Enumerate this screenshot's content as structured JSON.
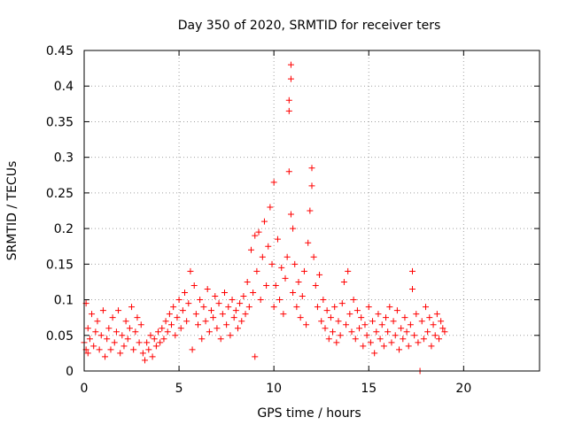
{
  "chart_data": {
    "type": "scatter",
    "title": "Day 350 of 2020, SRMTID for receiver ters",
    "xlabel": "GPS time / hours",
    "ylabel": "SRMTID / TECUs",
    "xlim": [
      0,
      24
    ],
    "ylim": [
      0,
      0.45
    ],
    "xticks": [
      "0",
      "5",
      "10",
      "15",
      "20"
    ],
    "xtick_values": [
      0,
      5,
      10,
      15,
      20
    ],
    "yticks": [
      "0",
      "0.05",
      "0.1",
      "0.15",
      "0.2",
      "0.25",
      "0.3",
      "0.35",
      "0.4",
      "0.45"
    ],
    "ytick_values": [
      0,
      0.05,
      0.1,
      0.15,
      0.2,
      0.25,
      0.3,
      0.35,
      0.4,
      0.45
    ],
    "grid": true,
    "marker": "+",
    "color": "#ff0000",
    "series": [
      {
        "points": [
          [
            0.0,
            0.04
          ],
          [
            0.1,
            0.03
          ],
          [
            0.1,
            0.095
          ],
          [
            0.2,
            0.025
          ],
          [
            0.2,
            0.06
          ],
          [
            0.3,
            0.045
          ],
          [
            0.4,
            0.08
          ],
          [
            0.5,
            0.035
          ],
          [
            0.6,
            0.055
          ],
          [
            0.7,
            0.07
          ],
          [
            0.8,
            0.03
          ],
          [
            0.9,
            0.05
          ],
          [
            1.0,
            0.085
          ],
          [
            1.1,
            0.02
          ],
          [
            1.2,
            0.045
          ],
          [
            1.3,
            0.06
          ],
          [
            1.4,
            0.03
          ],
          [
            1.5,
            0.075
          ],
          [
            1.6,
            0.04
          ],
          [
            1.7,
            0.055
          ],
          [
            1.8,
            0.085
          ],
          [
            1.9,
            0.025
          ],
          [
            2.0,
            0.05
          ],
          [
            2.1,
            0.035
          ],
          [
            2.2,
            0.07
          ],
          [
            2.3,
            0.045
          ],
          [
            2.4,
            0.06
          ],
          [
            2.5,
            0.09
          ],
          [
            2.6,
            0.03
          ],
          [
            2.7,
            0.055
          ],
          [
            2.8,
            0.075
          ],
          [
            2.9,
            0.04
          ],
          [
            3.0,
            0.065
          ],
          [
            3.1,
            0.025
          ],
          [
            3.2,
            0.015
          ],
          [
            3.3,
            0.04
          ],
          [
            3.4,
            0.03
          ],
          [
            3.5,
            0.05
          ],
          [
            3.6,
            0.02
          ],
          [
            3.7,
            0.045
          ],
          [
            3.8,
            0.035
          ],
          [
            3.9,
            0.055
          ],
          [
            4.0,
            0.04
          ],
          [
            4.1,
            0.06
          ],
          [
            4.2,
            0.045
          ],
          [
            4.3,
            0.07
          ],
          [
            4.4,
            0.055
          ],
          [
            4.5,
            0.08
          ],
          [
            4.6,
            0.065
          ],
          [
            4.7,
            0.09
          ],
          [
            4.8,
            0.05
          ],
          [
            4.9,
            0.075
          ],
          [
            5.0,
            0.1
          ],
          [
            5.1,
            0.06
          ],
          [
            5.2,
            0.085
          ],
          [
            5.3,
            0.11
          ],
          [
            5.4,
            0.07
          ],
          [
            5.5,
            0.095
          ],
          [
            5.6,
            0.14
          ],
          [
            5.7,
            0.03
          ],
          [
            5.8,
            0.12
          ],
          [
            5.9,
            0.08
          ],
          [
            6.0,
            0.065
          ],
          [
            6.1,
            0.1
          ],
          [
            6.2,
            0.045
          ],
          [
            6.3,
            0.09
          ],
          [
            6.4,
            0.07
          ],
          [
            6.5,
            0.115
          ],
          [
            6.6,
            0.055
          ],
          [
            6.7,
            0.085
          ],
          [
            6.8,
            0.075
          ],
          [
            6.9,
            0.105
          ],
          [
            7.0,
            0.06
          ],
          [
            7.1,
            0.095
          ],
          [
            7.2,
            0.045
          ],
          [
            7.3,
            0.08
          ],
          [
            7.4,
            0.11
          ],
          [
            7.5,
            0.065
          ],
          [
            7.6,
            0.09
          ],
          [
            7.7,
            0.05
          ],
          [
            7.8,
            0.1
          ],
          [
            7.9,
            0.075
          ],
          [
            8.0,
            0.085
          ],
          [
            8.1,
            0.06
          ],
          [
            8.2,
            0.095
          ],
          [
            8.3,
            0.07
          ],
          [
            8.4,
            0.105
          ],
          [
            8.5,
            0.08
          ],
          [
            8.6,
            0.125
          ],
          [
            8.7,
            0.09
          ],
          [
            8.8,
            0.17
          ],
          [
            8.9,
            0.11
          ],
          [
            9.0,
            0.19
          ],
          [
            9.0,
            0.02
          ],
          [
            9.1,
            0.14
          ],
          [
            9.2,
            0.195
          ],
          [
            9.3,
            0.1
          ],
          [
            9.4,
            0.16
          ],
          [
            9.5,
            0.21
          ],
          [
            9.6,
            0.12
          ],
          [
            9.7,
            0.175
          ],
          [
            9.8,
            0.23
          ],
          [
            9.9,
            0.15
          ],
          [
            10.0,
            0.265
          ],
          [
            10.0,
            0.09
          ],
          [
            10.1,
            0.12
          ],
          [
            10.2,
            0.185
          ],
          [
            10.3,
            0.1
          ],
          [
            10.4,
            0.145
          ],
          [
            10.5,
            0.08
          ],
          [
            10.6,
            0.13
          ],
          [
            10.7,
            0.16
          ],
          [
            10.8,
            0.365
          ],
          [
            10.8,
            0.38
          ],
          [
            10.9,
            0.41
          ],
          [
            10.9,
            0.43
          ],
          [
            10.8,
            0.28
          ],
          [
            10.9,
            0.22
          ],
          [
            11.0,
            0.2
          ],
          [
            11.0,
            0.11
          ],
          [
            11.1,
            0.15
          ],
          [
            11.2,
            0.09
          ],
          [
            11.3,
            0.125
          ],
          [
            11.4,
            0.075
          ],
          [
            11.5,
            0.105
          ],
          [
            11.6,
            0.14
          ],
          [
            11.7,
            0.065
          ],
          [
            11.8,
            0.18
          ],
          [
            11.9,
            0.225
          ],
          [
            12.0,
            0.26
          ],
          [
            12.0,
            0.285
          ],
          [
            12.1,
            0.16
          ],
          [
            12.2,
            0.12
          ],
          [
            12.3,
            0.09
          ],
          [
            12.4,
            0.135
          ],
          [
            12.5,
            0.07
          ],
          [
            12.6,
            0.1
          ],
          [
            12.7,
            0.06
          ],
          [
            12.8,
            0.085
          ],
          [
            12.9,
            0.045
          ],
          [
            13.0,
            0.075
          ],
          [
            13.1,
            0.055
          ],
          [
            13.2,
            0.09
          ],
          [
            13.3,
            0.04
          ],
          [
            13.4,
            0.07
          ],
          [
            13.5,
            0.05
          ],
          [
            13.6,
            0.095
          ],
          [
            13.7,
            0.125
          ],
          [
            13.8,
            0.065
          ],
          [
            13.9,
            0.14
          ],
          [
            14.0,
            0.08
          ],
          [
            14.1,
            0.055
          ],
          [
            14.2,
            0.1
          ],
          [
            14.3,
            0.045
          ],
          [
            14.4,
            0.085
          ],
          [
            14.5,
            0.06
          ],
          [
            14.6,
            0.075
          ],
          [
            14.7,
            0.035
          ],
          [
            14.8,
            0.065
          ],
          [
            14.9,
            0.05
          ],
          [
            15.0,
            0.09
          ],
          [
            15.1,
            0.04
          ],
          [
            15.2,
            0.07
          ],
          [
            15.3,
            0.025
          ],
          [
            15.4,
            0.055
          ],
          [
            15.5,
            0.08
          ],
          [
            15.6,
            0.045
          ],
          [
            15.7,
            0.065
          ],
          [
            15.8,
            0.035
          ],
          [
            15.9,
            0.075
          ],
          [
            16.0,
            0.055
          ],
          [
            16.1,
            0.09
          ],
          [
            16.2,
            0.04
          ],
          [
            16.3,
            0.07
          ],
          [
            16.4,
            0.05
          ],
          [
            16.5,
            0.085
          ],
          [
            16.6,
            0.03
          ],
          [
            16.7,
            0.06
          ],
          [
            16.8,
            0.045
          ],
          [
            16.9,
            0.075
          ],
          [
            17.0,
            0.055
          ],
          [
            17.1,
            0.035
          ],
          [
            17.2,
            0.065
          ],
          [
            17.3,
            0.14
          ],
          [
            17.3,
            0.115
          ],
          [
            17.4,
            0.05
          ],
          [
            17.5,
            0.08
          ],
          [
            17.6,
            0.04
          ],
          [
            17.7,
            0.0
          ],
          [
            17.8,
            0.07
          ],
          [
            17.9,
            0.045
          ],
          [
            18.0,
            0.09
          ],
          [
            18.1,
            0.055
          ],
          [
            18.2,
            0.075
          ],
          [
            18.3,
            0.035
          ],
          [
            18.4,
            0.065
          ],
          [
            18.5,
            0.05
          ],
          [
            18.6,
            0.08
          ],
          [
            18.7,
            0.045
          ],
          [
            18.8,
            0.07
          ],
          [
            18.9,
            0.06
          ],
          [
            19.0,
            0.055
          ]
        ]
      }
    ]
  }
}
